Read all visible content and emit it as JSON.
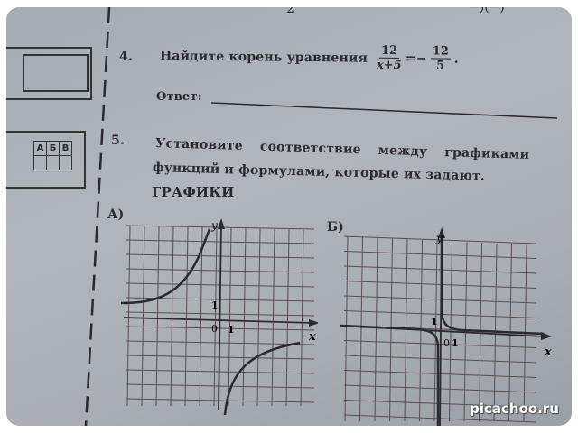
{
  "top_fragment": {
    "left": "2",
    "right": "−)(−)"
  },
  "task4": {
    "number": "4.",
    "text": "Найдите корень уравнения",
    "frac1_num": "12",
    "frac1_den": "x+5",
    "equals": "=−",
    "frac2_num": "12",
    "frac2_den": "5",
    "period": ".",
    "answer_label": "Ответ:"
  },
  "task5": {
    "number": "5.",
    "line1": "Установите соответствие между графиками",
    "line2": "функций и формулами, которые их задают.",
    "section_title": "ГРАФИКИ",
    "answer_table_headers": [
      "А",
      "Б",
      "В"
    ]
  },
  "graphs": [
    {
      "label": "А)",
      "x_axis": "x",
      "y_axis": "y",
      "origin": "0",
      "unit_x": "1",
      "unit_y": "1"
    },
    {
      "label": "Б)",
      "x_axis": "x",
      "y_axis": "y",
      "origin": "0",
      "unit_x": "1",
      "unit_y": "1"
    }
  ],
  "watermark": "picachoo.ru"
}
